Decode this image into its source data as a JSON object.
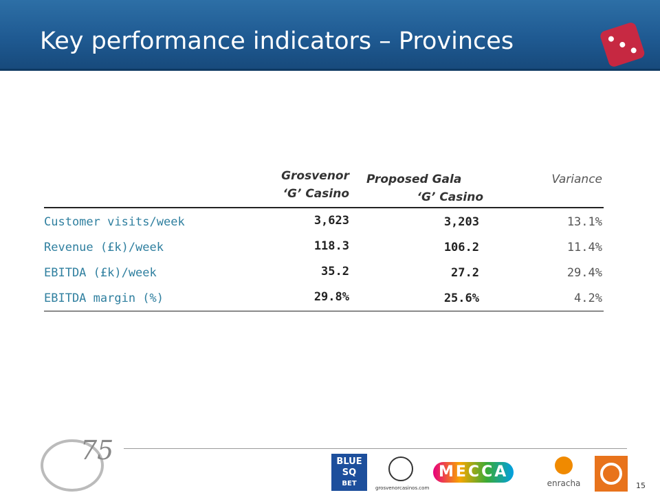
{
  "header": {
    "title": "Key performance indicators – Provinces"
  },
  "table": {
    "columns": [
      [
        "Grosvenor",
        "‘G’ Casino"
      ],
      [
        "Proposed Gala",
        "‘G’ Casino"
      ],
      [
        "Variance"
      ]
    ],
    "rows": [
      [
        "Customer visits/week",
        "3,623",
        "3,203",
        "13.1%"
      ],
      [
        "Revenue (£k)/week",
        "118.3",
        "106.2",
        "11.4%"
      ],
      [
        "EBITDA (£k)/week",
        "35.2",
        "27.2",
        "29.4%"
      ],
      [
        "EBITDA margin (%)",
        "29.8%",
        "25.6%",
        "4.2%"
      ]
    ]
  },
  "footer": {
    "anniversary": "75",
    "logos": [
      "BLUE SQ",
      "BET",
      "grosvenorcasinos.com",
      "MECCA",
      "enracha"
    ],
    "page": "15"
  }
}
